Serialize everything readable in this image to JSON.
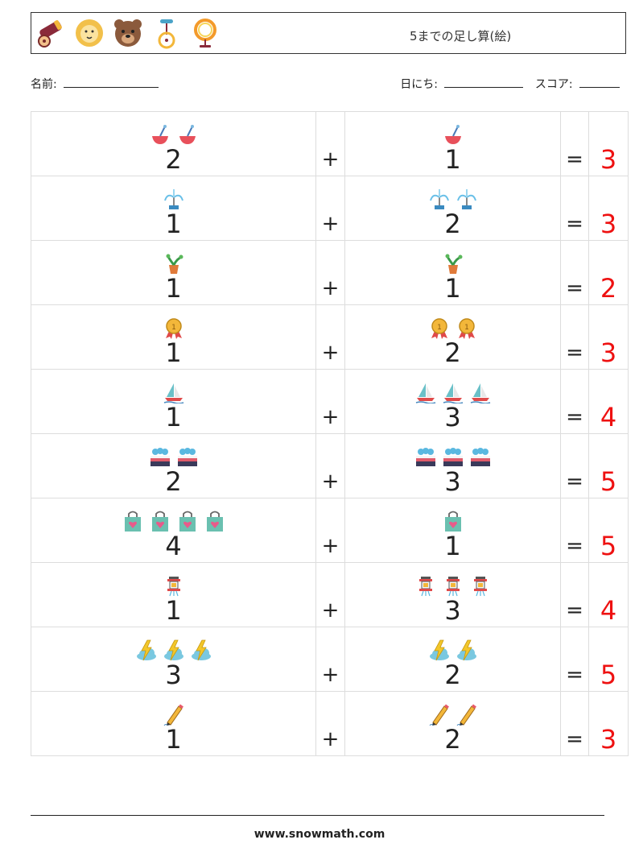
{
  "header": {
    "title": "5までの足し算(絵)",
    "icons": [
      "cannon-icon",
      "lion-icon",
      "bear-icon",
      "unicycle-icon",
      "ring-of-fire-icon"
    ]
  },
  "info": {
    "name_label": "名前:",
    "date_label": "日にち:",
    "score_label": "スコア:"
  },
  "operators": {
    "plus": "+",
    "equals": "="
  },
  "problems": [
    {
      "a": "2",
      "a_icon": "bowl",
      "b": "1",
      "b_icon": "bowl",
      "answer": "3"
    },
    {
      "a": "1",
      "a_icon": "fountain",
      "b": "2",
      "b_icon": "fountain",
      "answer": "3"
    },
    {
      "a": "1",
      "a_icon": "potted-plant",
      "b": "1",
      "b_icon": "potted-plant",
      "answer": "2"
    },
    {
      "a": "1",
      "a_icon": "medal",
      "b": "2",
      "b_icon": "medal",
      "answer": "3"
    },
    {
      "a": "1",
      "a_icon": "sailboat",
      "b": "3",
      "b_icon": "sailboat",
      "answer": "4"
    },
    {
      "a": "2",
      "a_icon": "cake",
      "b": "3",
      "b_icon": "cake",
      "answer": "5"
    },
    {
      "a": "4",
      "a_icon": "shopping-bag",
      "b": "1",
      "b_icon": "shopping-bag",
      "answer": "5"
    },
    {
      "a": "1",
      "a_icon": "lantern",
      "b": "3",
      "b_icon": "lantern",
      "answer": "4"
    },
    {
      "a": "3",
      "a_icon": "thunderstorm",
      "b": "2",
      "b_icon": "thunderstorm",
      "answer": "5"
    },
    {
      "a": "1",
      "a_icon": "pencil",
      "b": "2",
      "b_icon": "pencil",
      "answer": "3"
    }
  ],
  "footer": {
    "url": "www.snowmath.com"
  },
  "colors": {
    "answer": "#ee1111",
    "border": "#dddddd"
  }
}
